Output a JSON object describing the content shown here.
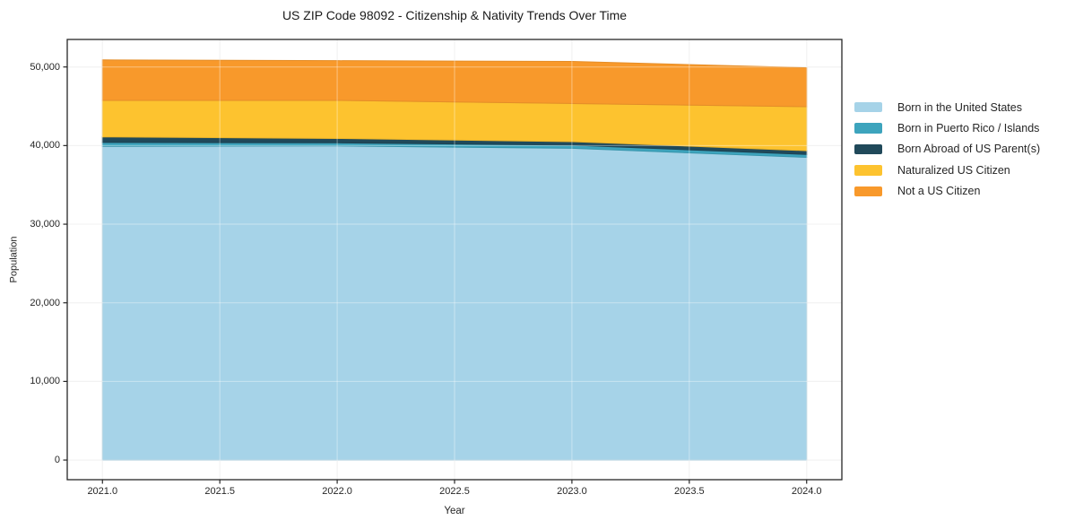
{
  "title": "US ZIP Code 98092 - Citizenship & Nativity Trends Over Time",
  "chart_data": {
    "type": "area",
    "stacked": true,
    "title": "US ZIP Code 98092 - Citizenship & Nativity Trends Over Time",
    "xlabel": "Year",
    "ylabel": "Population",
    "x": [
      2021,
      2022,
      2023,
      2024
    ],
    "series": [
      {
        "name": "Born in the United States",
        "color": "#a6d3e8",
        "values": [
          39900,
          39950,
          39650,
          38500
        ]
      },
      {
        "name": "Born in Puerto Rico / Islands",
        "color": "#3da4bd",
        "values": [
          500,
          400,
          400,
          370
        ]
      },
      {
        "name": "Born Abroad of US Parent(s)",
        "color": "#20495a",
        "values": [
          700,
          550,
          450,
          480
        ]
      },
      {
        "name": "Naturalized US Citizen",
        "color": "#fdc32f",
        "values": [
          4650,
          4850,
          4850,
          5600
        ]
      },
      {
        "name": "Not a US Citizen",
        "color": "#f8992b",
        "values": [
          5150,
          5050,
          5350,
          4950
        ]
      }
    ],
    "totals": [
      50900,
      50800,
      50700,
      49900
    ],
    "xticks": {
      "values": [
        2021.0,
        2021.5,
        2022.0,
        2022.5,
        2023.0,
        2023.5,
        2024.0
      ],
      "labels": [
        "2021.0",
        "2021.5",
        "2022.0",
        "2022.5",
        "2023.0",
        "2023.5",
        "2024.0"
      ]
    },
    "yticks": {
      "values": [
        0,
        10000,
        20000,
        30000,
        40000,
        50000
      ],
      "labels": [
        "0",
        "10,000",
        "20,000",
        "30,000",
        "40,000",
        "50,000"
      ]
    },
    "xlim": [
      2020.85,
      2024.15
    ],
    "ylim": [
      -2500,
      53500
    ],
    "grid": true,
    "legend_position": "right",
    "colors": {
      "spine": "#262626",
      "grid": "#e9e9e9",
      "grid_overlay": "rgba(255,255,255,0.4)",
      "title_text": "#1a1a1a",
      "tick_text": "#262626",
      "background": "#ffffff"
    }
  }
}
